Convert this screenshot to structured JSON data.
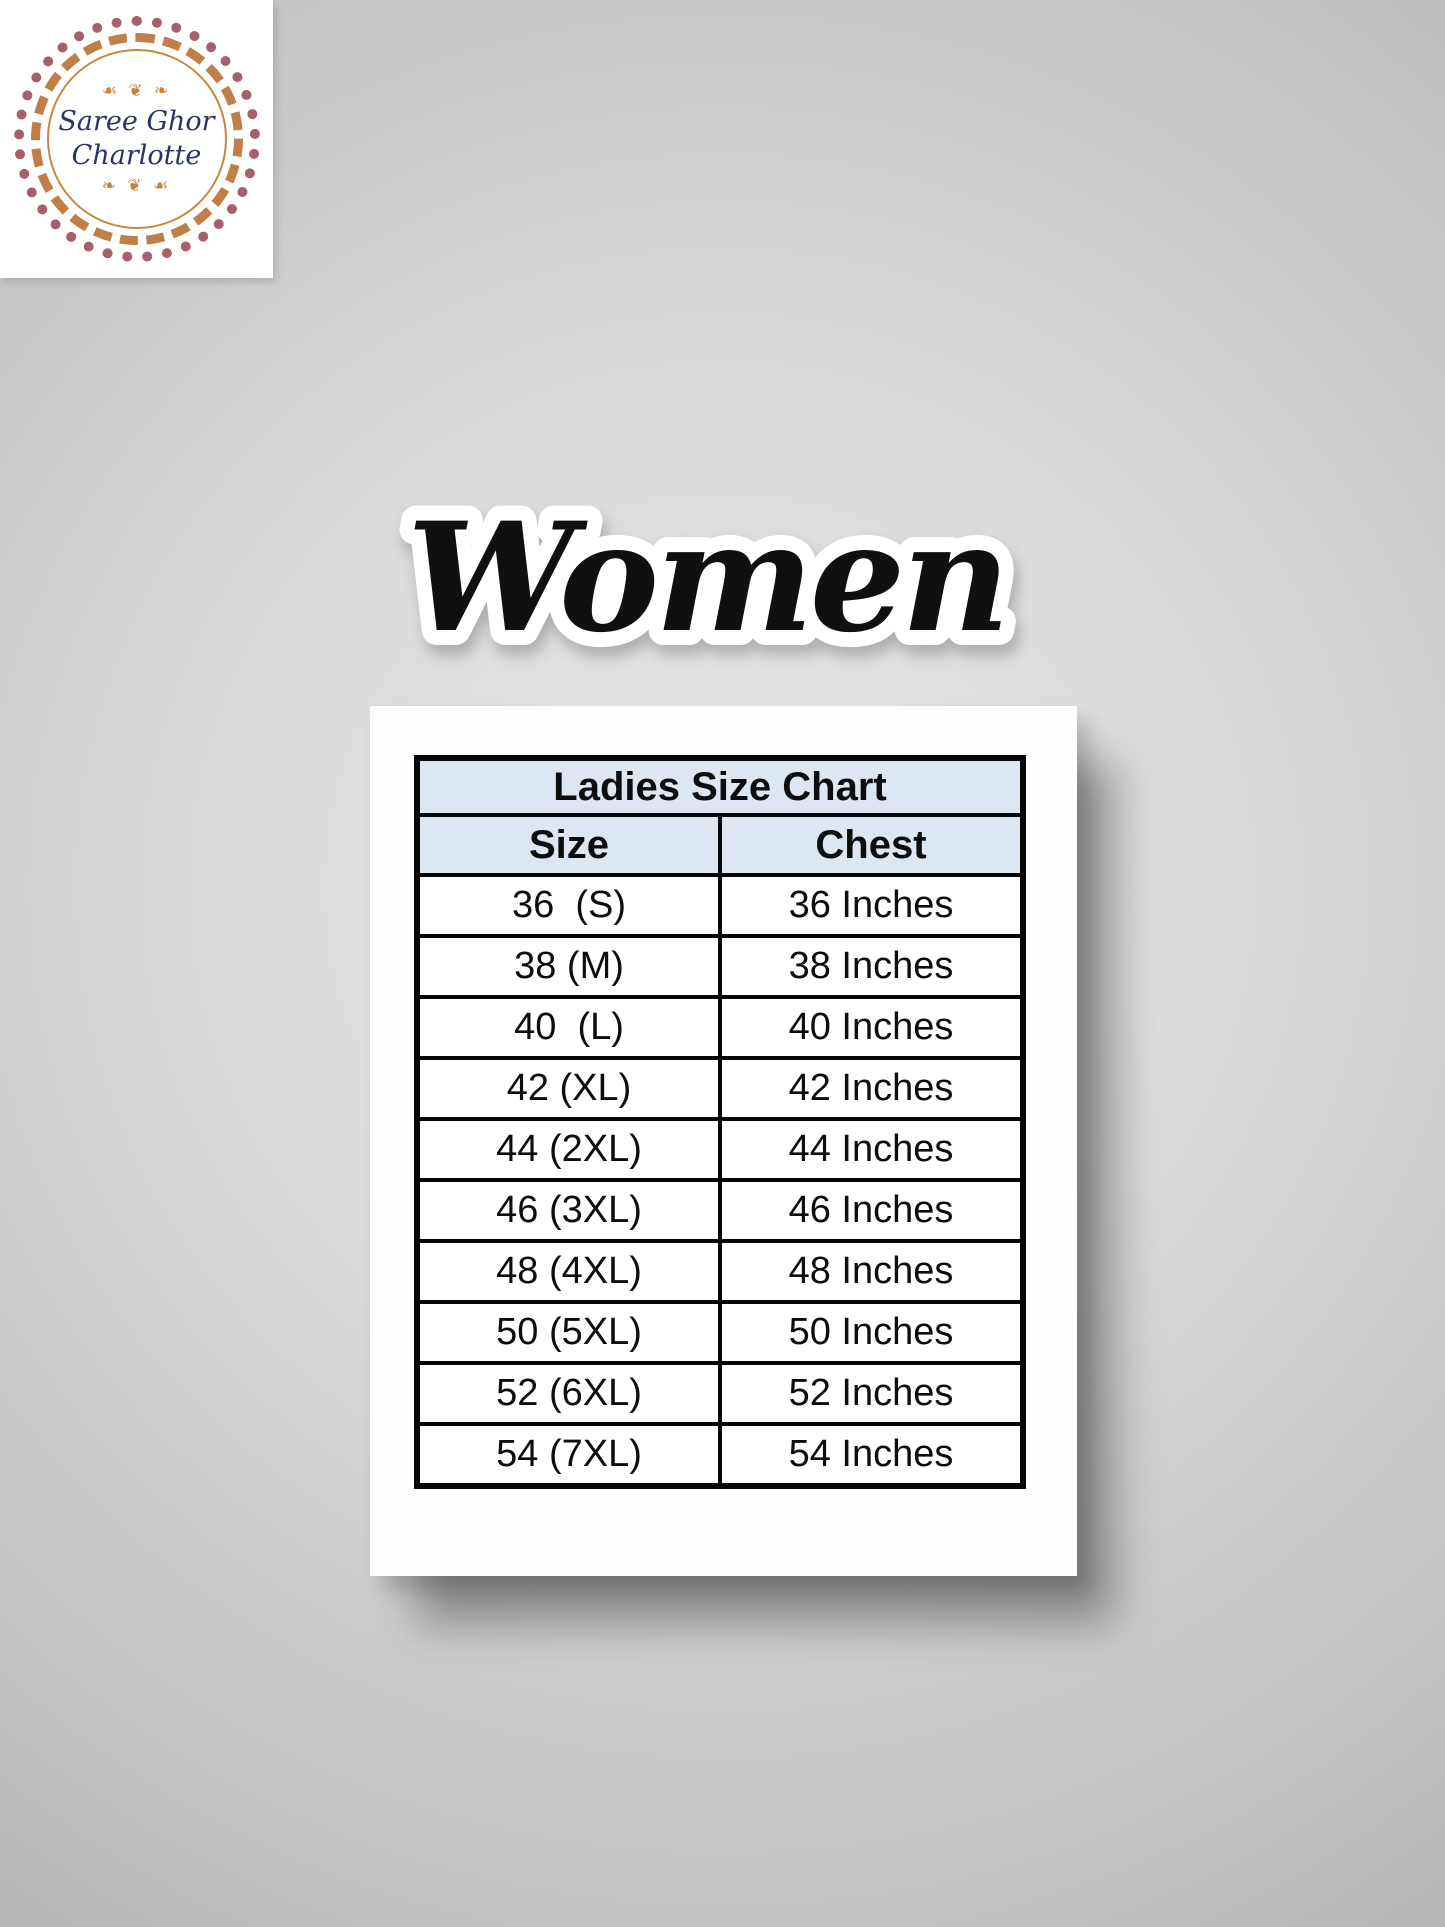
{
  "logo": {
    "line1": "Saree Ghor",
    "line2": "Charlotte",
    "flourish_top": "☙ ❦ ❧",
    "flourish_bottom": "❧ ❦ ☙"
  },
  "title": "Women",
  "size_chart": {
    "title": "Ladies Size Chart",
    "columns": [
      "Size",
      "Chest"
    ],
    "rows": [
      [
        "36  (S)",
        "36 Inches"
      ],
      [
        "38 (M)",
        "38 Inches"
      ],
      [
        "40  (L)",
        "40 Inches"
      ],
      [
        "42 (XL)",
        "42 Inches"
      ],
      [
        "44 (2XL)",
        "44 Inches"
      ],
      [
        "46 (3XL)",
        "46 Inches"
      ],
      [
        "48 (4XL)",
        "48 Inches"
      ],
      [
        "50 (5XL)",
        "50 Inches"
      ],
      [
        "52 (6XL)",
        "52 Inches"
      ],
      [
        "54 (7XL)",
        "54 Inches"
      ]
    ]
  },
  "colors": {
    "header_bg": "#dde7f1",
    "table_border": "#060606",
    "logo_accent_orange": "#c8823c",
    "logo_accent_maroon": "#a75f6b",
    "logo_text": "#2a3365",
    "sticker_fill": "#101010",
    "sticker_outline": "#ffffff"
  },
  "chart_data": {
    "type": "table",
    "title": "Ladies Size Chart",
    "columns": [
      "Size",
      "Chest"
    ],
    "rows": [
      [
        "36 (S)",
        "36 Inches"
      ],
      [
        "38 (M)",
        "38 Inches"
      ],
      [
        "40 (L)",
        "40 Inches"
      ],
      [
        "42 (XL)",
        "42 Inches"
      ],
      [
        "44 (2XL)",
        "44 Inches"
      ],
      [
        "46 (3XL)",
        "46 Inches"
      ],
      [
        "48 (4XL)",
        "48 Inches"
      ],
      [
        "50 (5XL)",
        "50 Inches"
      ],
      [
        "52 (6XL)",
        "52 Inches"
      ],
      [
        "54 (7XL)",
        "54 Inches"
      ]
    ],
    "sizes_numeric": [
      36,
      38,
      40,
      42,
      44,
      46,
      48,
      50,
      52,
      54
    ],
    "size_labels": [
      "S",
      "M",
      "L",
      "XL",
      "2XL",
      "3XL",
      "4XL",
      "5XL",
      "6XL",
      "7XL"
    ],
    "chest_inches": [
      36,
      38,
      40,
      42,
      44,
      46,
      48,
      50,
      52,
      54
    ]
  }
}
